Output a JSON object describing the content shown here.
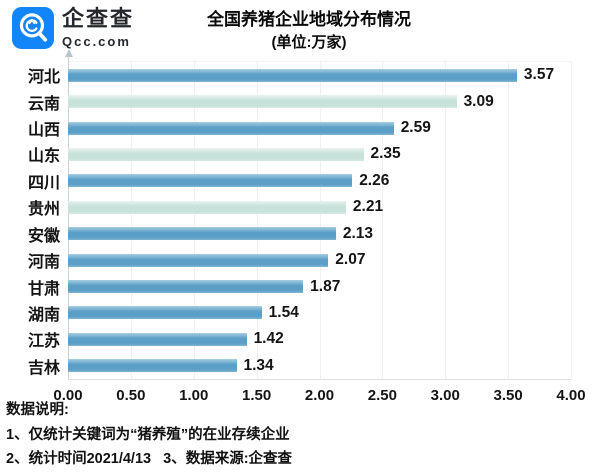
{
  "brand": {
    "name": "企查查",
    "domain": "Qcc.com",
    "logo_color": "#1285fb"
  },
  "title": {
    "line1": "全国养猪企业地域分布情况",
    "line2": "(单位:万家)"
  },
  "chart_data": {
    "type": "bar",
    "orientation": "horizontal",
    "title": "全国养猪企业地域分布情况",
    "unit": "万家",
    "categories": [
      "河北",
      "云南",
      "山西",
      "山东",
      "四川",
      "贵州",
      "安徽",
      "河南",
      "甘肃",
      "湖南",
      "江苏",
      "吉林"
    ],
    "values": [
      3.57,
      3.09,
      2.59,
      2.35,
      2.26,
      2.21,
      2.13,
      2.07,
      1.87,
      1.54,
      1.42,
      1.34
    ],
    "value_labels": [
      "3.57",
      "3.09",
      "2.59",
      "2.35",
      "2.26",
      "2.21",
      "2.13",
      "2.07",
      "1.87",
      "1.54",
      "1.42",
      "1.34"
    ],
    "bar_tones": [
      "primary",
      "secondary",
      "primary",
      "secondary",
      "primary",
      "secondary",
      "primary",
      "primary",
      "primary",
      "primary",
      "primary",
      "primary"
    ],
    "xlim": [
      0,
      4
    ],
    "xticks": [
      "0.00",
      "0.50",
      "1.00",
      "1.50",
      "2.00",
      "2.50",
      "3.00",
      "3.50",
      "4.00"
    ],
    "grid": true,
    "legend": false,
    "colors": {
      "primary": {
        "top": "#a6cde0",
        "mid": "#5b9fc7",
        "bottom": "#7fb5d2"
      },
      "secondary": {
        "top": "#e9f3ef",
        "mid": "#c7e2da",
        "bottom": "#d5e9e2"
      }
    }
  },
  "notes": {
    "heading": "数据说明:",
    "line1": "1、仅统计关键词为“猪养殖”的在业存续企业",
    "line2": "2、统计时间2021/4/13   3、数据来源:企查查"
  }
}
